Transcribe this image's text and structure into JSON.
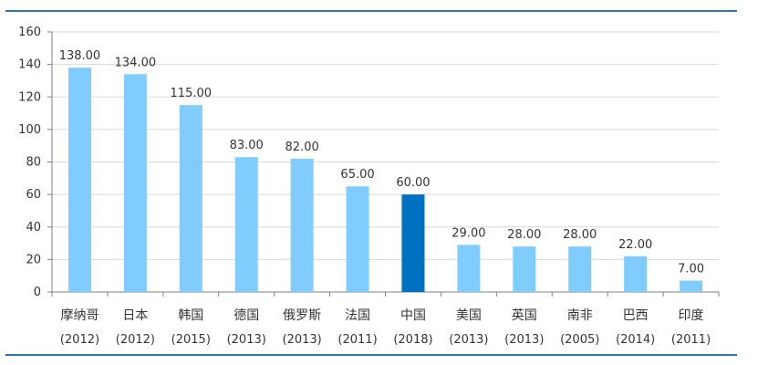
{
  "chart_data": {
    "type": "bar",
    "title": "",
    "xlabel": "",
    "ylabel": "",
    "ylim": [
      0,
      160
    ],
    "yticks": [
      0,
      20,
      40,
      60,
      80,
      100,
      120,
      140,
      160
    ],
    "grid": true,
    "legend": "none",
    "categories": [
      "摩纳哥",
      "日本",
      "韩国",
      "德国",
      "俄罗斯",
      "法国",
      "中国",
      "美国",
      "英国",
      "南非",
      "巴西",
      "印度"
    ],
    "years": [
      "(2012)",
      "(2012)",
      "(2015)",
      "(2013)",
      "(2013)",
      "(2011)",
      "(2018)",
      "(2013)",
      "(2013)",
      "(2005)",
      "(2014)",
      "(2011)"
    ],
    "values": [
      138,
      134,
      115,
      83,
      82,
      65,
      60,
      29,
      28,
      28,
      22,
      7
    ],
    "value_labels": [
      "138.00",
      "134.00",
      "115.00",
      "83.00",
      "82.00",
      "65.00",
      "60.00",
      "29.00",
      "28.00",
      "28.00",
      "22.00",
      "7.00"
    ],
    "highlight_index": 6
  },
  "colors": {
    "bar": "#80ccff",
    "highlight": "#0070c0",
    "grid": "#d9d9d9",
    "axis": "#7f7f7f",
    "rule": "#2e75b6"
  }
}
